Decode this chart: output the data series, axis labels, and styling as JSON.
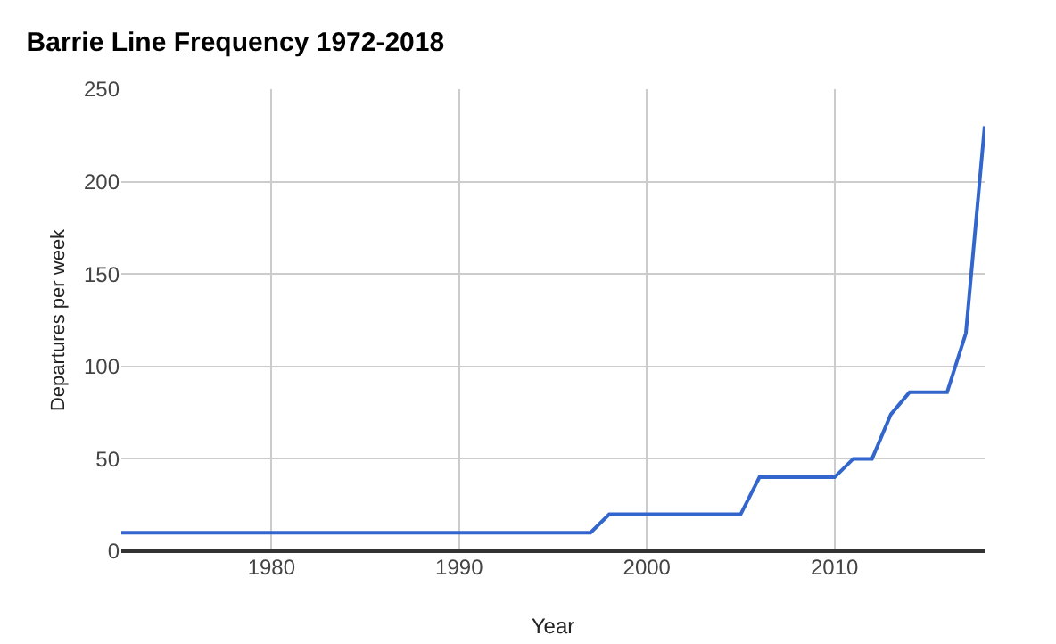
{
  "chart_data": {
    "type": "line",
    "title": "Barrie Line Frequency 1972-2018",
    "xlabel": "Year",
    "ylabel": "Departures per week",
    "x": [
      1972,
      1997,
      1998,
      2005,
      2006,
      2010,
      2011,
      2012,
      2013,
      2014,
      2016,
      2017,
      2018
    ],
    "series": [
      {
        "color": "#3366cc",
        "values": [
          10,
          10,
          20,
          20,
          40,
          40,
          50,
          50,
          74,
          86,
          86,
          118,
          230
        ]
      }
    ],
    "xlim": [
      1972,
      2018
    ],
    "xticks": [
      1980,
      1990,
      2000,
      2010
    ],
    "ylim": [
      0,
      250
    ],
    "yticks": [
      0,
      50,
      100,
      150,
      200,
      250
    ],
    "grid": true,
    "marker": "none",
    "line_style": "solid"
  }
}
